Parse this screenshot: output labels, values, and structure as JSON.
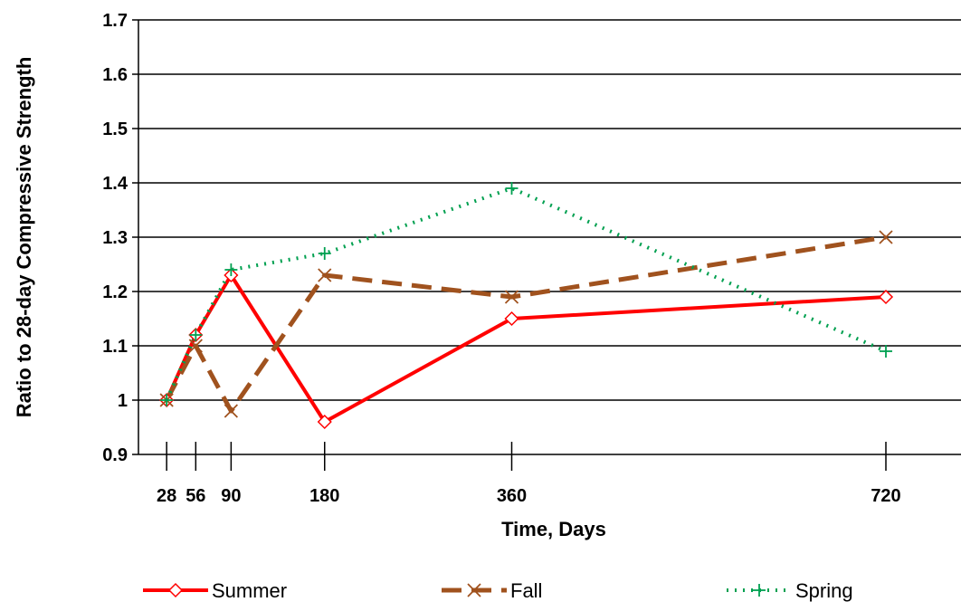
{
  "chart_data": {
    "type": "line",
    "title": "",
    "xlabel": "Time, Days",
    "ylabel": "Ratio to 28-day Compressive Strength",
    "x": [
      28,
      56,
      90,
      180,
      360,
      720
    ],
    "x_tick_labels": [
      "28",
      "56",
      "90",
      "180",
      "360",
      "720"
    ],
    "xlim": [
      0,
      720
    ],
    "ylim": [
      0.9,
      1.7
    ],
    "y_ticks": [
      0.9,
      1,
      1.1,
      1.2,
      1.3,
      1.4,
      1.5,
      1.6,
      1.7
    ],
    "y_tick_labels": [
      "0.9",
      "1",
      "1.1",
      "1.2",
      "1.3",
      "1.4",
      "1.5",
      "1.6",
      "1.7"
    ],
    "grid": true,
    "legend_position": "bottom",
    "series": [
      {
        "name": "Summer",
        "color": "#ff0000",
        "line_style": "solid",
        "marker": "diamond",
        "values": [
          1.0,
          1.12,
          1.23,
          0.96,
          1.15,
          1.19
        ]
      },
      {
        "name": "Fall",
        "color": "#a0521e",
        "line_style": "dashed",
        "marker": "x",
        "values": [
          1.0,
          1.1,
          0.98,
          1.23,
          1.19,
          1.3
        ]
      },
      {
        "name": "Spring",
        "color": "#00a050",
        "line_style": "dotted",
        "marker": "plus",
        "values": [
          1.0,
          1.12,
          1.24,
          1.27,
          1.39,
          1.09
        ]
      }
    ]
  }
}
